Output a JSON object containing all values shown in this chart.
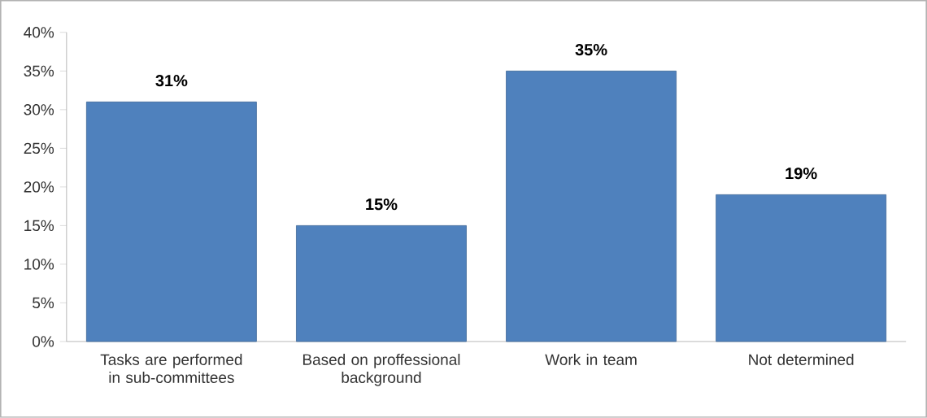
{
  "chart_data": {
    "type": "bar",
    "categories": [
      "Tasks are performed in sub-committees",
      "Based on proffessional background",
      "Work in team",
      "Not determined"
    ],
    "values": [
      31,
      15,
      35,
      19
    ],
    "value_labels": [
      "31%",
      "15%",
      "35%",
      "19%"
    ],
    "color": "#4f81bd",
    "ylim": [
      0,
      40
    ],
    "yticks": [
      {
        "value": 0,
        "label": "0%"
      },
      {
        "value": 5,
        "label": "5%"
      },
      {
        "value": 10,
        "label": "10%"
      },
      {
        "value": 15,
        "label": "15%"
      },
      {
        "value": 20,
        "label": "20%"
      },
      {
        "value": 25,
        "label": "25%"
      },
      {
        "value": 30,
        "label": "30%"
      },
      {
        "value": 35,
        "label": "35%"
      },
      {
        "value": 40,
        "label": "40%"
      }
    ]
  }
}
